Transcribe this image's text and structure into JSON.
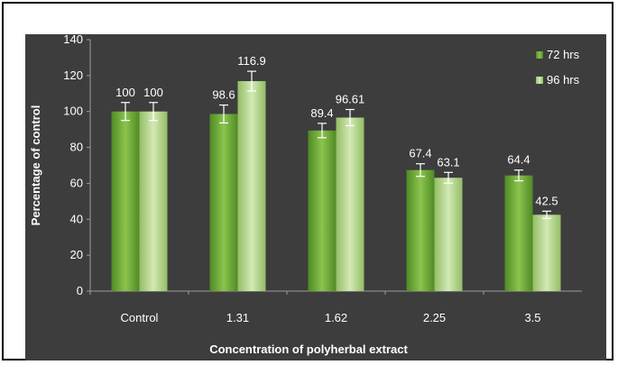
{
  "chart_data": {
    "type": "bar",
    "categories": [
      "Control",
      "1.31",
      "1.62",
      "2.25",
      "3.5"
    ],
    "series": [
      {
        "name": "72 hrs",
        "values": [
          100,
          98.6,
          89.4,
          67.4,
          64.4
        ],
        "error": [
          5,
          5,
          4,
          3.5,
          3
        ],
        "labels": [
          "100",
          "98.6",
          "89.4",
          "67.4",
          "64.4"
        ],
        "color": "#6aa838"
      },
      {
        "name": "96 hrs",
        "values": [
          100,
          116.9,
          96.61,
          63.1,
          42.5
        ],
        "error": [
          5,
          5.5,
          4.5,
          3,
          2
        ],
        "labels": [
          "100",
          "116.9",
          "96.61",
          "63.1",
          "42.5"
        ],
        "color": "#b5d68c"
      }
    ],
    "title": "",
    "xlabel": "Concentration of polyherbal extract",
    "ylabel": "Percentage of control",
    "ylim": [
      0,
      140
    ],
    "yticks": [
      "0",
      "20",
      "40",
      "60",
      "80",
      "100",
      "120",
      "140"
    ],
    "grid": false,
    "legend_position": "top-right",
    "background": "#3d3d3d"
  }
}
